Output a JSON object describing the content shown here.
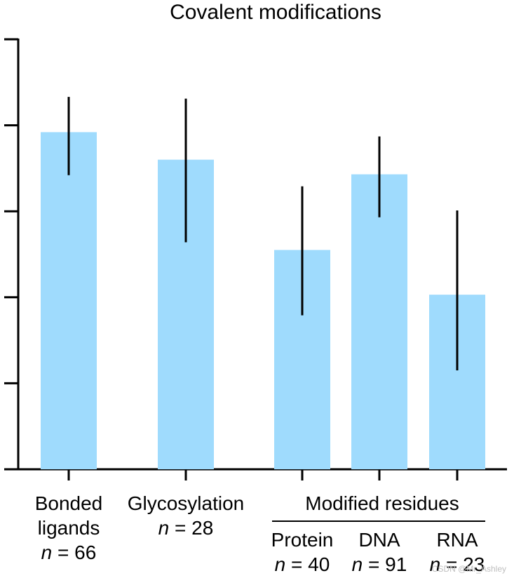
{
  "chart_data": {
    "type": "bar",
    "title": "Covalent modifications",
    "xlabel": "",
    "ylabel": "",
    "ylim": [
      0,
      5
    ],
    "y_tick_values": [
      0,
      1,
      2,
      3,
      4,
      5
    ],
    "y_tick_labels_shown": false,
    "bar_color": "#9fdbfd",
    "error_bar_color": "#000000",
    "categories": [
      {
        "label_lines": [
          "Bonded",
          "ligands"
        ],
        "n_prefix": "n",
        "n_value": "= 66"
      },
      {
        "label_lines": [
          "Glycosylation"
        ],
        "n_prefix": "n",
        "n_value": "= 28"
      },
      {
        "label_lines": [
          "Protein"
        ],
        "n_prefix": "n",
        "n_value": "= 40"
      },
      {
        "label_lines": [
          "DNA"
        ],
        "n_prefix": "n",
        "n_value": "= 91"
      },
      {
        "label_lines": [
          "RNA"
        ],
        "n_prefix": "n",
        "n_value": "= 23"
      }
    ],
    "values": [
      3.92,
      3.6,
      2.55,
      3.43,
      2.03
    ],
    "error_low": [
      3.42,
      2.64,
      1.79,
      2.93,
      1.15
    ],
    "error_high": [
      4.33,
      4.31,
      3.29,
      3.87,
      3.01
    ],
    "group_label": "Modified residues",
    "group_members": [
      "Protein",
      "DNA",
      "RNA"
    ]
  },
  "watermark": "CSDN @Mr_Ashley"
}
